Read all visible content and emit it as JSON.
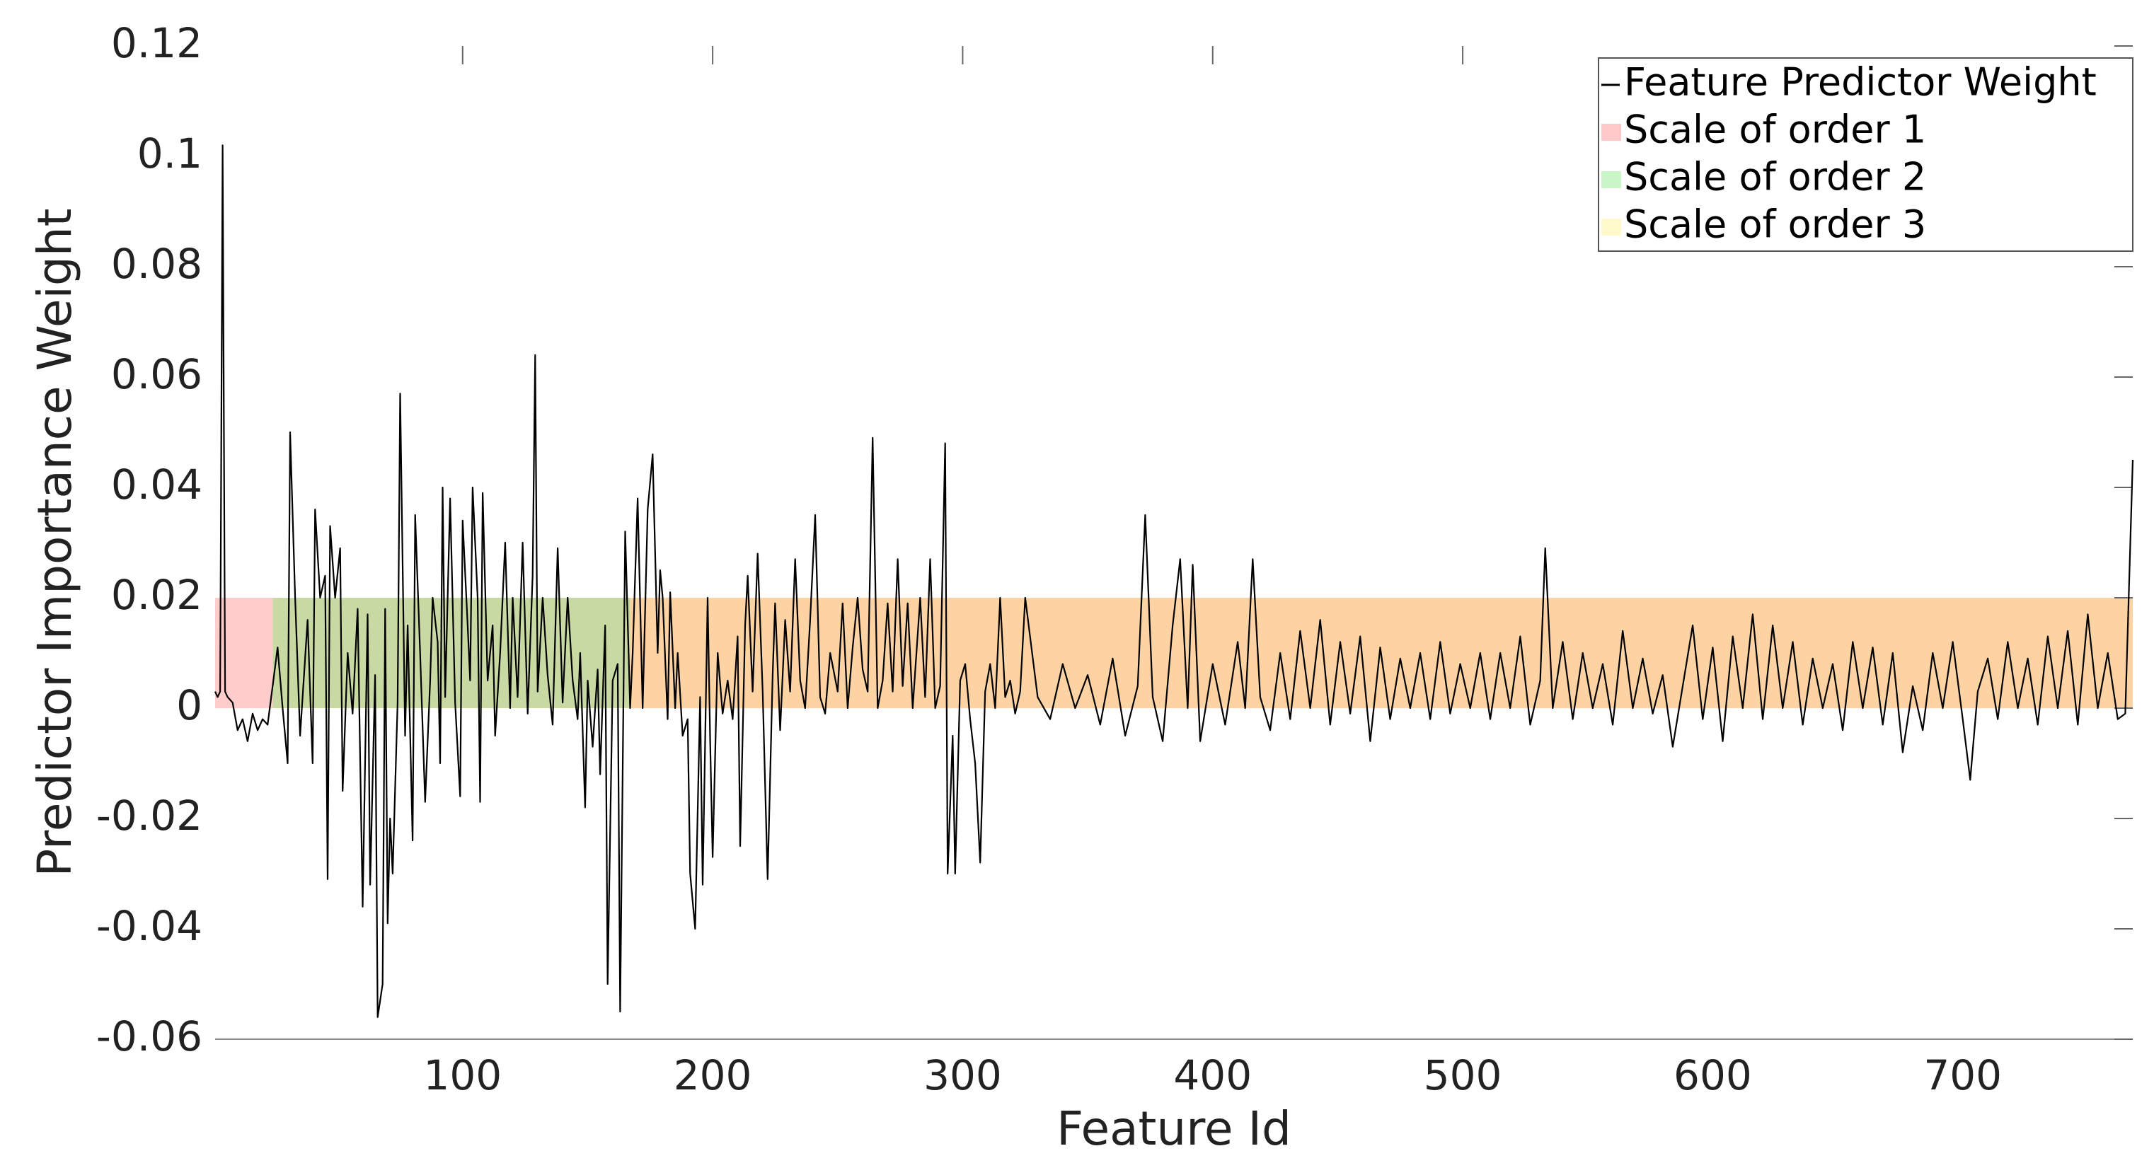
{
  "chart_data": {
    "type": "line",
    "xlabel": "Feature Id",
    "ylabel": "Predictor Importance Weight",
    "xlim": [
      1,
      768
    ],
    "ylim": [
      -0.06,
      0.12
    ],
    "xticks": [
      100,
      200,
      300,
      400,
      500,
      600,
      700
    ],
    "yticks": [
      -0.06,
      -0.04,
      -0.02,
      0,
      0.02,
      0.04,
      0.06,
      0.08,
      0.1,
      0.12
    ],
    "legend": "upper right",
    "series": [
      {
        "name": "Feature Predictor Weight",
        "color": "#000000",
        "x": [
          1,
          2,
          3,
          4,
          5,
          6,
          8,
          10,
          12,
          14,
          16,
          18,
          20,
          22,
          24,
          26,
          28,
          30,
          31,
          33,
          35,
          38,
          40,
          41,
          43,
          45,
          46,
          47,
          49,
          51,
          52,
          54,
          56,
          58,
          60,
          62,
          63,
          65,
          66,
          68,
          69,
          70,
          71,
          72,
          74,
          75,
          77,
          78,
          80,
          81,
          83,
          85,
          87,
          88,
          90,
          91,
          92,
          93,
          95,
          97,
          99,
          100,
          102,
          103,
          104,
          106,
          107,
          108,
          110,
          112,
          113,
          115,
          117,
          119,
          120,
          122,
          124,
          126,
          128,
          129,
          130,
          132,
          134,
          136,
          138,
          140,
          142,
          144,
          146,
          147,
          149,
          150,
          152,
          154,
          155,
          157,
          158,
          160,
          162,
          163,
          165,
          167,
          168,
          170,
          172,
          174,
          176,
          178,
          179,
          180,
          182,
          183,
          185,
          186,
          188,
          190,
          191,
          193,
          195,
          196,
          198,
          199,
          200,
          202,
          204,
          206,
          208,
          210,
          211,
          213,
          214,
          216,
          218,
          220,
          222,
          224,
          225,
          227,
          229,
          231,
          233,
          235,
          237,
          239,
          241,
          243,
          245,
          247,
          250,
          252,
          254,
          256,
          258,
          260,
          262,
          264,
          266,
          268,
          270,
          272,
          274,
          276,
          278,
          280,
          283,
          285,
          287,
          289,
          291,
          293,
          294,
          296,
          297,
          299,
          301,
          303,
          305,
          307,
          309,
          311,
          313,
          315,
          317,
          319,
          321,
          323,
          325,
          330,
          335,
          340,
          345,
          350,
          355,
          360,
          365,
          370,
          373,
          376,
          380,
          384,
          387,
          390,
          392,
          395,
          400,
          405,
          410,
          413,
          416,
          419,
          423,
          427,
          431,
          435,
          439,
          443,
          447,
          451,
          455,
          459,
          463,
          467,
          471,
          475,
          479,
          483,
          487,
          491,
          495,
          499,
          503,
          507,
          511,
          515,
          519,
          523,
          527,
          531,
          533,
          536,
          540,
          544,
          548,
          552,
          556,
          560,
          564,
          568,
          572,
          576,
          580,
          584,
          588,
          592,
          596,
          600,
          604,
          608,
          612,
          616,
          620,
          624,
          628,
          632,
          636,
          640,
          644,
          648,
          652,
          656,
          660,
          664,
          668,
          672,
          676,
          680,
          684,
          688,
          692,
          696,
          700,
          703,
          706,
          710,
          714,
          718,
          722,
          726,
          730,
          734,
          738,
          742,
          746,
          750,
          754,
          758,
          762,
          765,
          768
        ],
        "values": [
          0.003,
          0.002,
          0.003,
          0.102,
          0.003,
          0.002,
          0.001,
          -0.004,
          -0.002,
          -0.006,
          -0.001,
          -0.004,
          -0.002,
          -0.003,
          0.004,
          0.011,
          0.0,
          -0.01,
          0.05,
          0.02,
          -0.005,
          0.016,
          -0.01,
          0.036,
          0.02,
          0.024,
          -0.031,
          0.033,
          0.02,
          0.029,
          -0.015,
          0.01,
          -0.001,
          0.018,
          -0.036,
          0.017,
          -0.032,
          0.006,
          -0.056,
          -0.05,
          0.018,
          -0.039,
          -0.02,
          -0.03,
          0.001,
          0.057,
          -0.005,
          0.015,
          -0.024,
          0.035,
          0.01,
          -0.017,
          0.005,
          0.02,
          0.012,
          -0.01,
          0.04,
          0.002,
          0.038,
          0.001,
          -0.016,
          0.034,
          0.015,
          0.005,
          0.04,
          0.02,
          -0.017,
          0.039,
          0.005,
          0.015,
          -0.005,
          0.01,
          0.03,
          0.0,
          0.02,
          0.002,
          0.03,
          -0.001,
          0.024,
          0.064,
          0.003,
          0.02,
          0.006,
          -0.003,
          0.029,
          0.001,
          0.02,
          0.005,
          -0.002,
          0.01,
          -0.018,
          0.005,
          -0.007,
          0.007,
          -0.012,
          0.015,
          -0.05,
          0.005,
          0.008,
          -0.055,
          0.032,
          0.0,
          0.01,
          0.038,
          0.0,
          0.036,
          0.046,
          0.01,
          0.025,
          0.02,
          -0.002,
          0.021,
          0.0,
          0.01,
          -0.005,
          -0.002,
          -0.03,
          -0.04,
          0.002,
          -0.032,
          0.02,
          -0.006,
          -0.027,
          0.01,
          -0.001,
          0.005,
          -0.002,
          0.013,
          -0.025,
          0.015,
          0.024,
          0.003,
          0.028,
          0.003,
          -0.031,
          0.006,
          0.019,
          -0.004,
          0.016,
          0.003,
          0.027,
          0.005,
          0.0,
          0.016,
          0.035,
          0.002,
          -0.001,
          0.01,
          0.003,
          0.019,
          0.0,
          0.011,
          0.02,
          0.007,
          0.003,
          0.049,
          0.0,
          0.005,
          0.019,
          0.003,
          0.027,
          0.004,
          0.019,
          0.0,
          0.02,
          0.002,
          0.027,
          0.0,
          0.004,
          0.048,
          -0.03,
          -0.005,
          -0.03,
          0.005,
          0.008,
          -0.002,
          -0.01,
          -0.028,
          0.003,
          0.008,
          0.0,
          0.02,
          0.002,
          0.005,
          -0.001,
          0.003,
          0.02,
          0.002,
          -0.002,
          0.008,
          0.0,
          0.006,
          -0.003,
          0.009,
          -0.005,
          0.004,
          0.035,
          0.002,
          -0.006,
          0.015,
          0.027,
          0.0,
          0.026,
          -0.006,
          0.008,
          -0.003,
          0.012,
          0.0,
          0.027,
          0.002,
          -0.004,
          0.01,
          -0.002,
          0.014,
          0.0,
          0.016,
          -0.003,
          0.012,
          -0.001,
          0.013,
          -0.006,
          0.011,
          -0.002,
          0.009,
          0.0,
          0.01,
          -0.002,
          0.012,
          -0.001,
          0.008,
          0.0,
          0.01,
          -0.002,
          0.01,
          0.0,
          0.013,
          -0.003,
          0.005,
          0.029,
          0.0,
          0.012,
          -0.002,
          0.01,
          0.0,
          0.008,
          -0.003,
          0.014,
          0.0,
          0.009,
          -0.001,
          0.006,
          -0.007,
          0.004,
          0.015,
          -0.002,
          0.011,
          -0.006,
          0.013,
          0.0,
          0.017,
          -0.002,
          0.015,
          0.0,
          0.012,
          -0.003,
          0.009,
          0.0,
          0.008,
          -0.004,
          0.012,
          0.0,
          0.011,
          -0.003,
          0.01,
          -0.008,
          0.004,
          -0.004,
          0.01,
          0.0,
          0.012,
          -0.002,
          -0.013,
          0.003,
          0.009,
          -0.002,
          0.012,
          0.0,
          0.009,
          -0.003,
          0.013,
          0.0,
          0.014,
          -0.003,
          0.017,
          0.0,
          0.01,
          -0.002,
          -0.001,
          0.045
        ]
      }
    ],
    "regions": [
      {
        "name": "Scale of order 1",
        "color": "#ffc9c9",
        "fill": "#ffcccc",
        "start": 1,
        "end": 24,
        "ymin": 0,
        "ymax": 0.02
      },
      {
        "name": "Scale of order 2",
        "color": "#c9f5c9",
        "fill": "#c9d9a3",
        "start": 24,
        "end": 167,
        "ymin": 0,
        "ymax": 0.02
      },
      {
        "name": "Scale of order 3",
        "color": "#fffacc",
        "fill": "#fdd3a3",
        "start": 167,
        "end": 768,
        "ymin": 0,
        "ymax": 0.02
      }
    ]
  }
}
